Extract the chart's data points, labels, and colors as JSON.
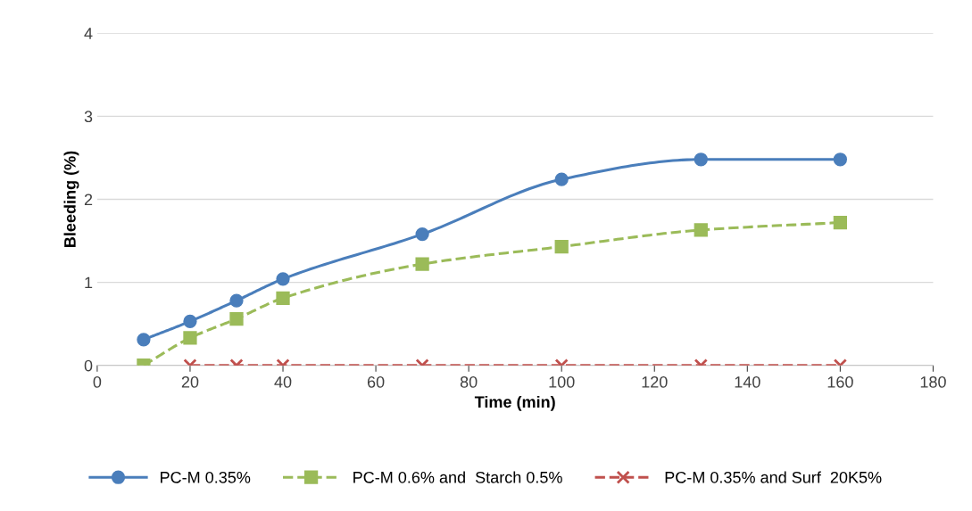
{
  "chart_data": {
    "type": "line",
    "xlabel": "Time (min)",
    "ylabel": "Bleeding (%)",
    "xlim": [
      0,
      180
    ],
    "xticks": [
      0,
      20,
      40,
      60,
      80,
      100,
      120,
      140,
      160,
      180
    ],
    "ylim": [
      0,
      4
    ],
    "yticks": [
      0,
      1,
      2,
      3,
      4
    ],
    "grid": "y",
    "legend": "bottom",
    "series": [
      {
        "name": "PC-M 0.35%",
        "color": "#4a7ebb",
        "marker": "circle",
        "line_style": "solid",
        "x": [
          10,
          20,
          30,
          40,
          70,
          100,
          130,
          160
        ],
        "values": [
          0.31,
          0.53,
          0.78,
          1.04,
          1.58,
          2.24,
          2.48,
          2.48
        ]
      },
      {
        "name": "PC-M 0.6% and  Starch 0.5%",
        "color": "#9bbb59",
        "marker": "square",
        "line_style": "dashed",
        "x": [
          10,
          20,
          30,
          40,
          70,
          100,
          130,
          160
        ],
        "values": [
          0,
          0.33,
          0.56,
          0.81,
          1.22,
          1.43,
          1.63,
          1.72
        ]
      },
      {
        "name": "PC-M 0.35% and Surf  20K5%",
        "color": "#c0504d",
        "marker": "cross",
        "line_style": "dashed",
        "x": [
          20,
          30,
          40,
          70,
          100,
          130,
          160
        ],
        "values": [
          0,
          0,
          0,
          0,
          0,
          0,
          0
        ]
      }
    ]
  }
}
